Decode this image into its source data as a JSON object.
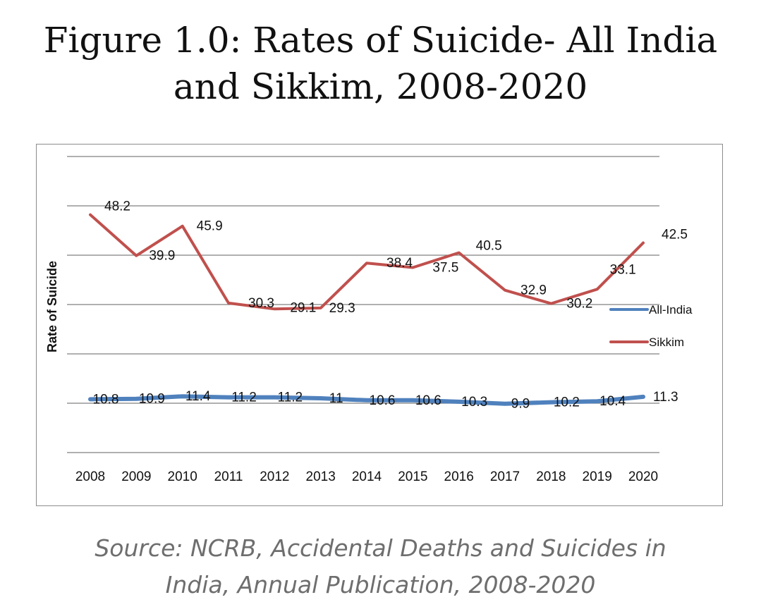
{
  "title": [
    "Figure 1.0: Rates of Suicide- All India",
    "and Sikkim, 2008-2020"
  ],
  "source": [
    "Source: NCRB, Accidental Deaths and Suicides in",
    "India, Annual Publication, 2008-2020"
  ],
  "colors": {
    "all_india": "#4f81bd",
    "sikkim": "#c0504d",
    "grid": "#808080",
    "text": "#111111"
  },
  "chart_data": {
    "type": "line",
    "title": "",
    "xlabel": "",
    "ylabel": "Rate of Suicide",
    "ylim": [
      0,
      60
    ],
    "grid": true,
    "legend": "right",
    "categories": [
      "2008",
      "2009",
      "2010",
      "2011",
      "2012",
      "2013",
      "2014",
      "2015",
      "2016",
      "2017",
      "2018",
      "2019",
      "2020"
    ],
    "series": [
      {
        "name": "All-India",
        "values": [
          10.8,
          10.9,
          11.4,
          11.2,
          11.2,
          11,
          10.6,
          10.6,
          10.3,
          9.9,
          10.2,
          10.4,
          11.3
        ]
      },
      {
        "name": "Sikkim",
        "values": [
          48.2,
          39.9,
          45.9,
          30.3,
          29.1,
          29.3,
          38.4,
          37.5,
          40.5,
          32.9,
          30.2,
          33.1,
          42.5
        ]
      }
    ]
  }
}
